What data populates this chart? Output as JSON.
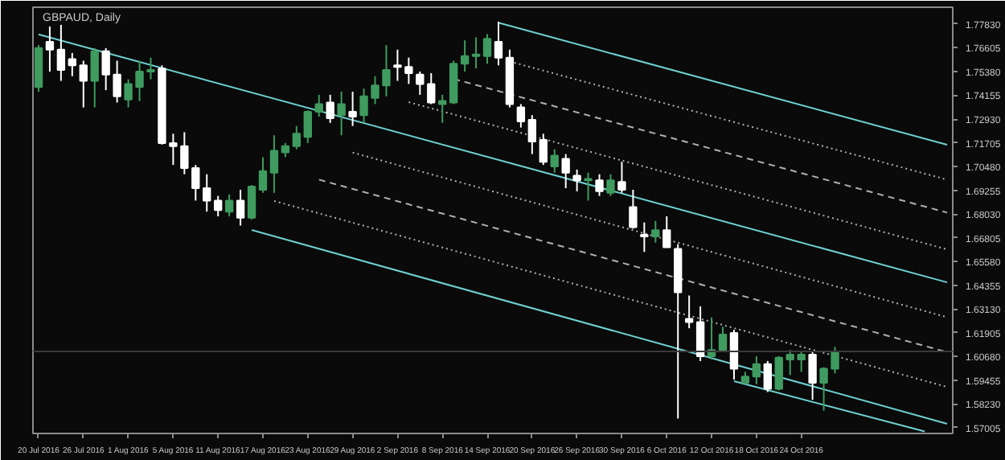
{
  "chart_data": {
    "type": "candlestick",
    "title": "GBPAUD, Daily",
    "categories": [
      "20 Jul 2016",
      null,
      null,
      null,
      "26 Jul 2016",
      null,
      null,
      null,
      "1 Aug 2016",
      null,
      null,
      null,
      "5 Aug 2016",
      null,
      null,
      null,
      "11 Aug 2016",
      null,
      null,
      null,
      "17 Aug 2016",
      null,
      null,
      null,
      "23 Aug 2016",
      null,
      null,
      null,
      "29 Aug 2016",
      null,
      null,
      null,
      "2 Sep 2016",
      null,
      null,
      null,
      "8 Sep 2016",
      null,
      null,
      null,
      "14 Sep 2016",
      null,
      null,
      null,
      "20 Sep 2016",
      null,
      null,
      null,
      "26 Sep 2016",
      null,
      null,
      null,
      "30 Sep 2016",
      null,
      null,
      null,
      "6 Oct 2016",
      null,
      null,
      null,
      "12 Oct 2016",
      null,
      null,
      null,
      "18 Oct 2016",
      null,
      null,
      null,
      "24 Oct 2016",
      null,
      null,
      null,
      null,
      null,
      null,
      null,
      null,
      null,
      null,
      null,
      null,
      null
    ],
    "ohlc": [
      [
        1.7458,
        1.7675,
        1.7434,
        1.7659
      ],
      [
        1.7691,
        1.7771,
        1.7538,
        1.7651
      ],
      [
        1.7651,
        1.7779,
        1.749,
        1.7546
      ],
      [
        1.7602,
        1.7634,
        1.7514,
        1.757
      ],
      [
        1.757,
        1.7594,
        1.7353,
        1.749
      ],
      [
        1.749,
        1.7659,
        1.7353,
        1.7643
      ],
      [
        1.7643,
        1.7659,
        1.7442,
        1.7522
      ],
      [
        1.7522,
        1.7594,
        1.7378,
        1.741
      ],
      [
        1.7394,
        1.7498,
        1.7353,
        1.7474
      ],
      [
        1.7458,
        1.7594,
        1.7386,
        1.7538
      ],
      [
        1.7538,
        1.761,
        1.7498,
        1.7546
      ],
      [
        1.7554,
        1.757,
        1.7161,
        1.7169
      ],
      [
        1.7169,
        1.7217,
        1.7056,
        1.7153
      ],
      [
        1.7153,
        1.7225,
        1.7008,
        1.704
      ],
      [
        1.704,
        1.7056,
        1.6872,
        1.6936
      ],
      [
        1.6936,
        1.7008,
        1.6815,
        1.6872
      ],
      [
        1.6872,
        1.6896,
        1.6791,
        1.6823
      ],
      [
        1.6815,
        1.6904,
        1.6791,
        1.6872
      ],
      [
        1.6872,
        1.6928,
        1.6743,
        1.6783
      ],
      [
        1.6783,
        1.6952,
        1.6775,
        1.6944
      ],
      [
        1.6928,
        1.7096,
        1.6912,
        1.7024
      ],
      [
        1.7016,
        1.7209,
        1.6912,
        1.7129
      ],
      [
        1.7121,
        1.7169,
        1.7096,
        1.7153
      ],
      [
        1.7153,
        1.7257,
        1.7137,
        1.7217
      ],
      [
        1.7201,
        1.7338,
        1.7169,
        1.733
      ],
      [
        1.733,
        1.7418,
        1.7305,
        1.737
      ],
      [
        1.7378,
        1.7418,
        1.7273,
        1.7297
      ],
      [
        1.7313,
        1.7434,
        1.7209,
        1.737
      ],
      [
        1.733,
        1.7434,
        1.7257,
        1.7305
      ],
      [
        1.7313,
        1.745,
        1.7273,
        1.741
      ],
      [
        1.7402,
        1.7514,
        1.737,
        1.7466
      ],
      [
        1.7466,
        1.7675,
        1.741,
        1.7546
      ],
      [
        1.757,
        1.7651,
        1.749,
        1.7562
      ],
      [
        1.7562,
        1.761,
        1.7474,
        1.753
      ],
      [
        1.7522,
        1.7538,
        1.7418,
        1.7474
      ],
      [
        1.7474,
        1.753,
        1.737,
        1.7378
      ],
      [
        1.737,
        1.7418,
        1.7273,
        1.7386
      ],
      [
        1.7378,
        1.7594,
        1.737,
        1.7578
      ],
      [
        1.7578,
        1.7699,
        1.7538,
        1.7618
      ],
      [
        1.7618,
        1.7715,
        1.7554,
        1.7626
      ],
      [
        1.7618,
        1.7731,
        1.7578,
        1.7707
      ],
      [
        1.7691,
        1.7795,
        1.757,
        1.761
      ],
      [
        1.761,
        1.7651,
        1.7353,
        1.737
      ],
      [
        1.7353,
        1.737,
        1.7249,
        1.7281
      ],
      [
        1.7289,
        1.7313,
        1.7112,
        1.7177
      ],
      [
        1.7185,
        1.7217,
        1.7056,
        1.7072
      ],
      [
        1.7048,
        1.7137,
        1.7016,
        1.7104
      ],
      [
        1.7088,
        1.7112,
        1.6936,
        1.7016
      ],
      [
        1.7,
        1.7032,
        1.692,
        1.6976
      ],
      [
        1.6976,
        1.7016,
        1.6872,
        1.6984
      ],
      [
        1.6976,
        1.7008,
        1.6896,
        1.692
      ],
      [
        1.6912,
        1.7008,
        1.6896,
        1.6976
      ],
      [
        1.6968,
        1.7072,
        1.6912,
        1.6928
      ],
      [
        1.6839,
        1.6928,
        1.6727,
        1.6735
      ],
      [
        1.6695,
        1.6759,
        1.6607,
        1.6687
      ],
      [
        1.6687,
        1.6767,
        1.6655,
        1.6719
      ],
      [
        1.6719,
        1.6791,
        1.6631,
        1.6631
      ],
      [
        1.6623,
        1.6647,
        1.5747,
        1.6398
      ],
      [
        1.6261,
        1.6382,
        1.6213,
        1.6245
      ],
      [
        1.6245,
        1.6326,
        1.6044,
        1.6069
      ],
      [
        1.6069,
        1.6269,
        1.6052,
        1.6101
      ],
      [
        1.6101,
        1.6221,
        1.6093,
        1.6181
      ],
      [
        1.6189,
        1.6205,
        1.5948,
        1.6004
      ],
      [
        1.5932,
        1.5988,
        1.5924,
        1.5964
      ],
      [
        1.5964,
        1.6069,
        1.5924,
        1.6028
      ],
      [
        1.6028,
        1.6044,
        1.5884,
        1.59
      ],
      [
        1.59,
        1.6069,
        1.5892,
        1.6061
      ],
      [
        1.6052,
        1.6101,
        1.5972,
        1.6077
      ],
      [
        1.6052,
        1.6093,
        1.5988,
        1.6077
      ],
      [
        1.6077,
        1.6093,
        1.5844,
        1.5932
      ],
      [
        1.5932,
        1.6012,
        1.5788,
        1.6004
      ],
      [
        1.6004,
        1.6117,
        1.598,
        1.6093
      ],
      null,
      null,
      null,
      null,
      null,
      null,
      null,
      null,
      null,
      null
    ],
    "colors": [
      "#3f9b5f",
      "#ffffff",
      "#ffffff",
      "#ffffff",
      "#ffffff",
      "#3f9b5f",
      "#ffffff",
      "#ffffff",
      "#3f9b5f",
      "#3f9b5f",
      "#3f9b5f",
      "#ffffff",
      "#ffffff",
      "#ffffff",
      "#ffffff",
      "#ffffff",
      "#ffffff",
      "#3f9b5f",
      "#ffffff",
      "#3f9b5f",
      "#3f9b5f",
      "#3f9b5f",
      "#3f9b5f",
      "#3f9b5f",
      "#3f9b5f",
      "#3f9b5f",
      "#ffffff",
      "#3f9b5f",
      "#ffffff",
      "#3f9b5f",
      "#3f9b5f",
      "#3f9b5f",
      "#ffffff",
      "#ffffff",
      "#ffffff",
      "#ffffff",
      "#3f9b5f",
      "#3f9b5f",
      "#3f9b5f",
      "#3f9b5f",
      "#3f9b5f",
      "#ffffff",
      "#ffffff",
      "#ffffff",
      "#ffffff",
      "#ffffff",
      "#3f9b5f",
      "#ffffff",
      "#ffffff",
      "#3f9b5f",
      "#ffffff",
      "#3f9b5f",
      "#ffffff",
      "#ffffff",
      "#ffffff",
      "#3f9b5f",
      "#ffffff",
      "#ffffff",
      "#ffffff",
      "#ffffff",
      "#3f9b5f",
      "#3f9b5f",
      "#ffffff",
      "#3f9b5f",
      "#3f9b5f",
      "#ffffff",
      "#3f9b5f",
      "#3f9b5f",
      "#3f9b5f",
      "#ffffff",
      "#3f9b5f",
      "#3f9b5f",
      null,
      null,
      null,
      null,
      null,
      null,
      null,
      null,
      null,
      null
    ],
    "series": [
      {
        "type": "line",
        "color": "#6fd0d0",
        "line_style": "solid",
        "values": [
          1.773,
          null,
          null,
          null,
          null,
          null,
          null,
          null,
          null,
          null,
          null,
          null,
          null,
          null,
          null,
          null,
          null,
          null,
          null,
          null,
          null,
          null,
          null,
          null,
          null,
          null,
          null,
          null,
          null,
          null,
          null,
          null,
          null,
          null,
          null,
          null,
          null,
          null,
          null,
          null,
          null,
          null,
          null,
          null,
          null,
          null,
          null,
          null,
          null,
          null,
          null,
          null,
          null,
          null,
          null,
          null,
          null,
          null,
          null,
          null,
          null,
          null,
          null,
          null,
          null,
          null,
          null,
          null,
          null,
          null,
          null,
          null,
          null,
          null,
          null,
          null,
          null,
          null,
          null,
          null,
          null,
          1.645
        ]
      },
      {
        "type": "line",
        "color": "#6fd0d0",
        "line_style": "solid",
        "values": [
          null,
          null,
          null,
          null,
          null,
          null,
          null,
          null,
          null,
          null,
          null,
          null,
          null,
          null,
          null,
          null,
          null,
          null,
          null,
          null,
          null,
          null,
          null,
          null,
          null,
          null,
          null,
          null,
          null,
          null,
          null,
          null,
          null,
          null,
          null,
          null,
          null,
          null,
          null,
          null,
          null,
          1.779,
          null,
          null,
          null,
          null,
          null,
          null,
          null,
          null,
          null,
          null,
          null,
          null,
          null,
          null,
          null,
          null,
          null,
          null,
          null,
          null,
          null,
          null,
          null,
          null,
          null,
          null,
          null,
          null,
          null,
          null,
          null,
          null,
          null,
          null,
          null,
          null,
          null,
          null,
          null,
          1.716
        ]
      },
      {
        "type": "line",
        "color": "#6fd0d0",
        "line_style": "solid",
        "values": [
          null,
          null,
          null,
          null,
          null,
          null,
          null,
          null,
          null,
          null,
          null,
          null,
          null,
          null,
          null,
          null,
          null,
          null,
          null,
          1.672,
          null,
          null,
          null,
          null,
          null,
          null,
          null,
          null,
          null,
          null,
          null,
          null,
          null,
          null,
          null,
          null,
          null,
          null,
          null,
          null,
          null,
          null,
          null,
          null,
          null,
          null,
          null,
          null,
          null,
          null,
          null,
          null,
          null,
          null,
          null,
          null,
          null,
          null,
          null,
          null,
          null,
          null,
          null,
          null,
          null,
          null,
          null,
          null,
          null,
          null,
          null,
          null,
          null,
          null,
          null,
          null,
          null,
          null,
          null,
          null,
          null,
          1.572
        ]
      },
      {
        "type": "line",
        "color": "#6fd0d0",
        "line_style": "solid",
        "values": [
          null,
          null,
          null,
          null,
          null,
          null,
          null,
          null,
          null,
          null,
          null,
          null,
          null,
          null,
          null,
          null,
          null,
          null,
          null,
          null,
          null,
          null,
          null,
          null,
          null,
          null,
          null,
          null,
          null,
          null,
          null,
          null,
          null,
          null,
          null,
          null,
          null,
          null,
          null,
          null,
          null,
          null,
          null,
          null,
          null,
          null,
          null,
          null,
          null,
          null,
          null,
          null,
          null,
          null,
          null,
          null,
          null,
          null,
          null,
          null,
          null,
          null,
          1.594,
          null,
          null,
          null,
          null,
          null,
          null,
          null,
          null,
          null,
          null,
          null,
          null,
          null,
          null,
          null,
          null,
          1.568,
          null,
          null
        ]
      },
      {
        "type": "line",
        "color": "#b0b0b0",
        "line_style": "dotted",
        "values": [
          null,
          null,
          null,
          null,
          null,
          null,
          null,
          null,
          null,
          null,
          null,
          null,
          null,
          null,
          null,
          null,
          null,
          null,
          null,
          null,
          null,
          null,
          null,
          null,
          null,
          null,
          null,
          null,
          null,
          null,
          null,
          null,
          null,
          null,
          null,
          null,
          null,
          null,
          null,
          null,
          null,
          null,
          1.759,
          null,
          null,
          null,
          null,
          null,
          null,
          null,
          null,
          null,
          null,
          null,
          null,
          null,
          null,
          null,
          null,
          null,
          null,
          null,
          null,
          null,
          null,
          null,
          null,
          null,
          null,
          null,
          null,
          null,
          null,
          null,
          null,
          null,
          null,
          null,
          null,
          null,
          null,
          1.698
        ]
      },
      {
        "type": "line",
        "color": "#b0b0b0",
        "line_style": "dashed",
        "values": [
          null,
          null,
          null,
          null,
          null,
          null,
          null,
          null,
          null,
          null,
          null,
          null,
          null,
          null,
          null,
          null,
          null,
          null,
          null,
          null,
          null,
          null,
          null,
          null,
          null,
          null,
          null,
          null,
          null,
          null,
          null,
          null,
          null,
          null,
          null,
          null,
          null,
          1.75,
          null,
          null,
          null,
          null,
          null,
          null,
          null,
          null,
          null,
          null,
          null,
          null,
          null,
          null,
          null,
          null,
          null,
          null,
          null,
          null,
          null,
          null,
          null,
          null,
          null,
          null,
          null,
          null,
          null,
          null,
          null,
          null,
          null,
          null,
          null,
          null,
          null,
          null,
          null,
          null,
          null,
          null,
          null,
          1.681
        ]
      },
      {
        "type": "line",
        "color": "#b0b0b0",
        "line_style": "dotted",
        "values": [
          null,
          null,
          null,
          null,
          null,
          null,
          null,
          null,
          null,
          null,
          null,
          null,
          null,
          null,
          null,
          null,
          null,
          null,
          null,
          null,
          null,
          null,
          null,
          null,
          null,
          null,
          null,
          null,
          null,
          null,
          null,
          null,
          null,
          1.738,
          null,
          null,
          null,
          null,
          null,
          null,
          null,
          null,
          null,
          null,
          null,
          null,
          null,
          null,
          null,
          null,
          null,
          null,
          null,
          null,
          null,
          null,
          null,
          null,
          null,
          null,
          null,
          null,
          null,
          null,
          null,
          null,
          null,
          null,
          null,
          null,
          null,
          null,
          null,
          null,
          null,
          null,
          null,
          null,
          null,
          null,
          null,
          1.662
        ]
      },
      {
        "type": "line",
        "color": "#b0b0b0",
        "line_style": "dotted",
        "values": [
          null,
          null,
          null,
          null,
          null,
          null,
          null,
          null,
          null,
          null,
          null,
          null,
          null,
          null,
          null,
          null,
          null,
          null,
          null,
          null,
          null,
          null,
          null,
          null,
          null,
          null,
          null,
          null,
          1.712,
          null,
          null,
          null,
          null,
          null,
          null,
          null,
          null,
          null,
          null,
          null,
          null,
          null,
          null,
          null,
          null,
          null,
          null,
          null,
          null,
          null,
          null,
          null,
          null,
          null,
          null,
          null,
          null,
          null,
          null,
          null,
          null,
          null,
          null,
          null,
          null,
          null,
          null,
          null,
          null,
          null,
          null,
          null,
          null,
          null,
          null,
          null,
          null,
          null,
          null,
          null,
          null,
          1.627
        ]
      },
      {
        "type": "line",
        "color": "#b0b0b0",
        "line_style": "dashed",
        "values": [
          null,
          null,
          null,
          null,
          null,
          null,
          null,
          null,
          null,
          null,
          null,
          null,
          null,
          null,
          null,
          null,
          null,
          null,
          null,
          null,
          null,
          null,
          null,
          null,
          null,
          1.698,
          null,
          null,
          null,
          null,
          null,
          null,
          null,
          null,
          null,
          null,
          null,
          null,
          null,
          null,
          null,
          null,
          null,
          null,
          null,
          null,
          null,
          null,
          null,
          null,
          null,
          null,
          null,
          null,
          null,
          null,
          null,
          null,
          null,
          null,
          null,
          null,
          null,
          null,
          null,
          null,
          null,
          null,
          null,
          null,
          null,
          null,
          null,
          null,
          null,
          null,
          null,
          null,
          null,
          null,
          null,
          1.609
        ]
      },
      {
        "type": "line",
        "color": "#b0b0b0",
        "line_style": "dotted",
        "values": [
          null,
          null,
          null,
          null,
          null,
          null,
          null,
          null,
          null,
          null,
          null,
          null,
          null,
          null,
          null,
          null,
          null,
          null,
          null,
          null,
          null,
          1.687,
          null,
          null,
          null,
          null,
          null,
          null,
          null,
          null,
          null,
          null,
          null,
          null,
          null,
          null,
          null,
          null,
          null,
          null,
          null,
          null,
          null,
          null,
          null,
          null,
          null,
          null,
          null,
          null,
          null,
          null,
          null,
          null,
          null,
          null,
          null,
          null,
          null,
          null,
          null,
          null,
          null,
          null,
          null,
          null,
          null,
          null,
          null,
          null,
          null,
          null,
          null,
          null,
          null,
          null,
          null,
          null,
          null,
          null,
          null,
          1.591
        ]
      }
    ],
    "ref_lines": [
      {
        "axis": "y",
        "value": 1.6093,
        "color": "#3a3a3a"
      }
    ],
    "ylim": [
      1.567,
      1.787
    ],
    "yticks": [
      {
        "value": 1.7783,
        "label": "1.77830"
      },
      {
        "value": 1.76605,
        "label": "1.76605"
      },
      {
        "value": 1.7538,
        "label": "1.75380"
      },
      {
        "value": 1.74155,
        "label": "1.74155"
      },
      {
        "value": 1.7293,
        "label": "1.72930"
      },
      {
        "value": 1.71705,
        "label": "1.71705"
      },
      {
        "value": 1.7048,
        "label": "1.70480"
      },
      {
        "value": 1.69255,
        "label": "1.69255"
      },
      {
        "value": 1.6803,
        "label": "1.68030"
      },
      {
        "value": 1.66805,
        "label": "1.66805"
      },
      {
        "value": 1.6558,
        "label": "1.65580"
      },
      {
        "value": 1.64355,
        "label": "1.64355"
      },
      {
        "value": 1.6313,
        "label": "1.63130"
      },
      {
        "value": 1.61905,
        "label": "1.61905"
      },
      {
        "value": 1.6068,
        "label": "1.60680"
      },
      {
        "value": 1.59455,
        "label": "1.59455"
      },
      {
        "value": 1.5823,
        "label": "1.58230"
      },
      {
        "value": 1.57005,
        "label": "1.57005"
      }
    ],
    "grid": false
  }
}
